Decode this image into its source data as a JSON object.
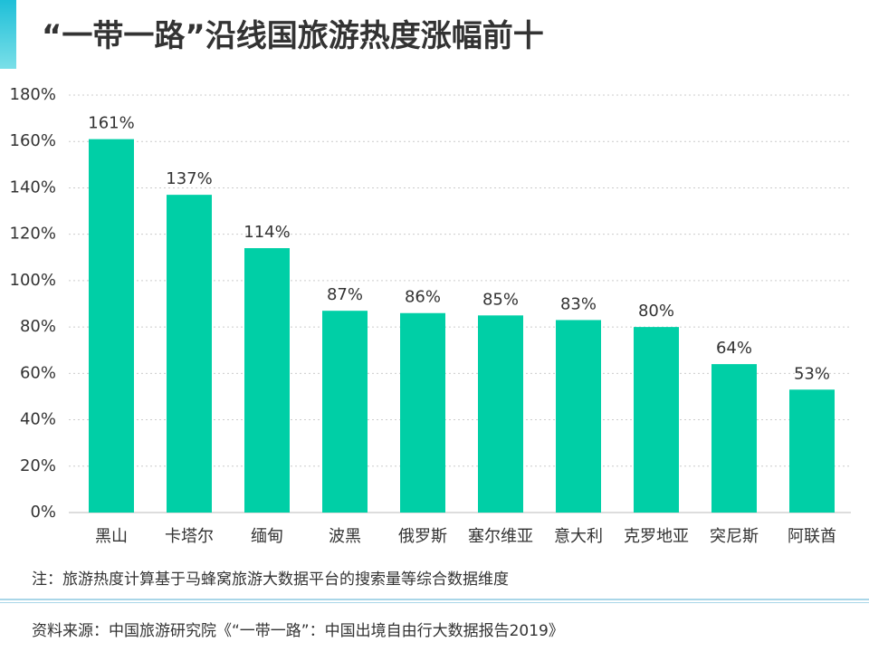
{
  "page": {
    "note": "注：旅游热度计算基于马蜂窝旅游大数据平台的搜索量等综合数据维度",
    "source": "资料来源：中国旅游研究院《“一带一路”：中国出境自由行大数据报告2019》"
  },
  "colors": {
    "bar": "#00CFA6",
    "accent": "#1EBFD8",
    "divider": "#A9D6E8",
    "text": "#333333",
    "grid": "#CCCCCC",
    "axis": "#BBBBBB"
  },
  "chart_data": {
    "type": "bar",
    "title": "“一带一路”沿线国旅游热度涨幅前十",
    "xlabel": "",
    "ylabel": "",
    "categories": [
      "黑山",
      "卡塔尔",
      "缅甸",
      "波黑",
      "俄罗斯",
      "塞尔维亚",
      "意大利",
      "克罗地亚",
      "突尼斯",
      "阿联酋"
    ],
    "values": [
      161,
      137,
      114,
      87,
      86,
      85,
      83,
      80,
      64,
      53
    ],
    "data_labels": [
      "161%",
      "137%",
      "114%",
      "87%",
      "86%",
      "85%",
      "83%",
      "80%",
      "64%",
      "53%"
    ],
    "ylim": [
      0,
      180
    ],
    "yticks": [
      0,
      20,
      40,
      60,
      80,
      100,
      120,
      140,
      160,
      180
    ],
    "ytick_labels": [
      "0%",
      "20%",
      "40%",
      "60%",
      "80%",
      "100%",
      "120%",
      "140%",
      "160%",
      "180%"
    ],
    "grid": true
  }
}
